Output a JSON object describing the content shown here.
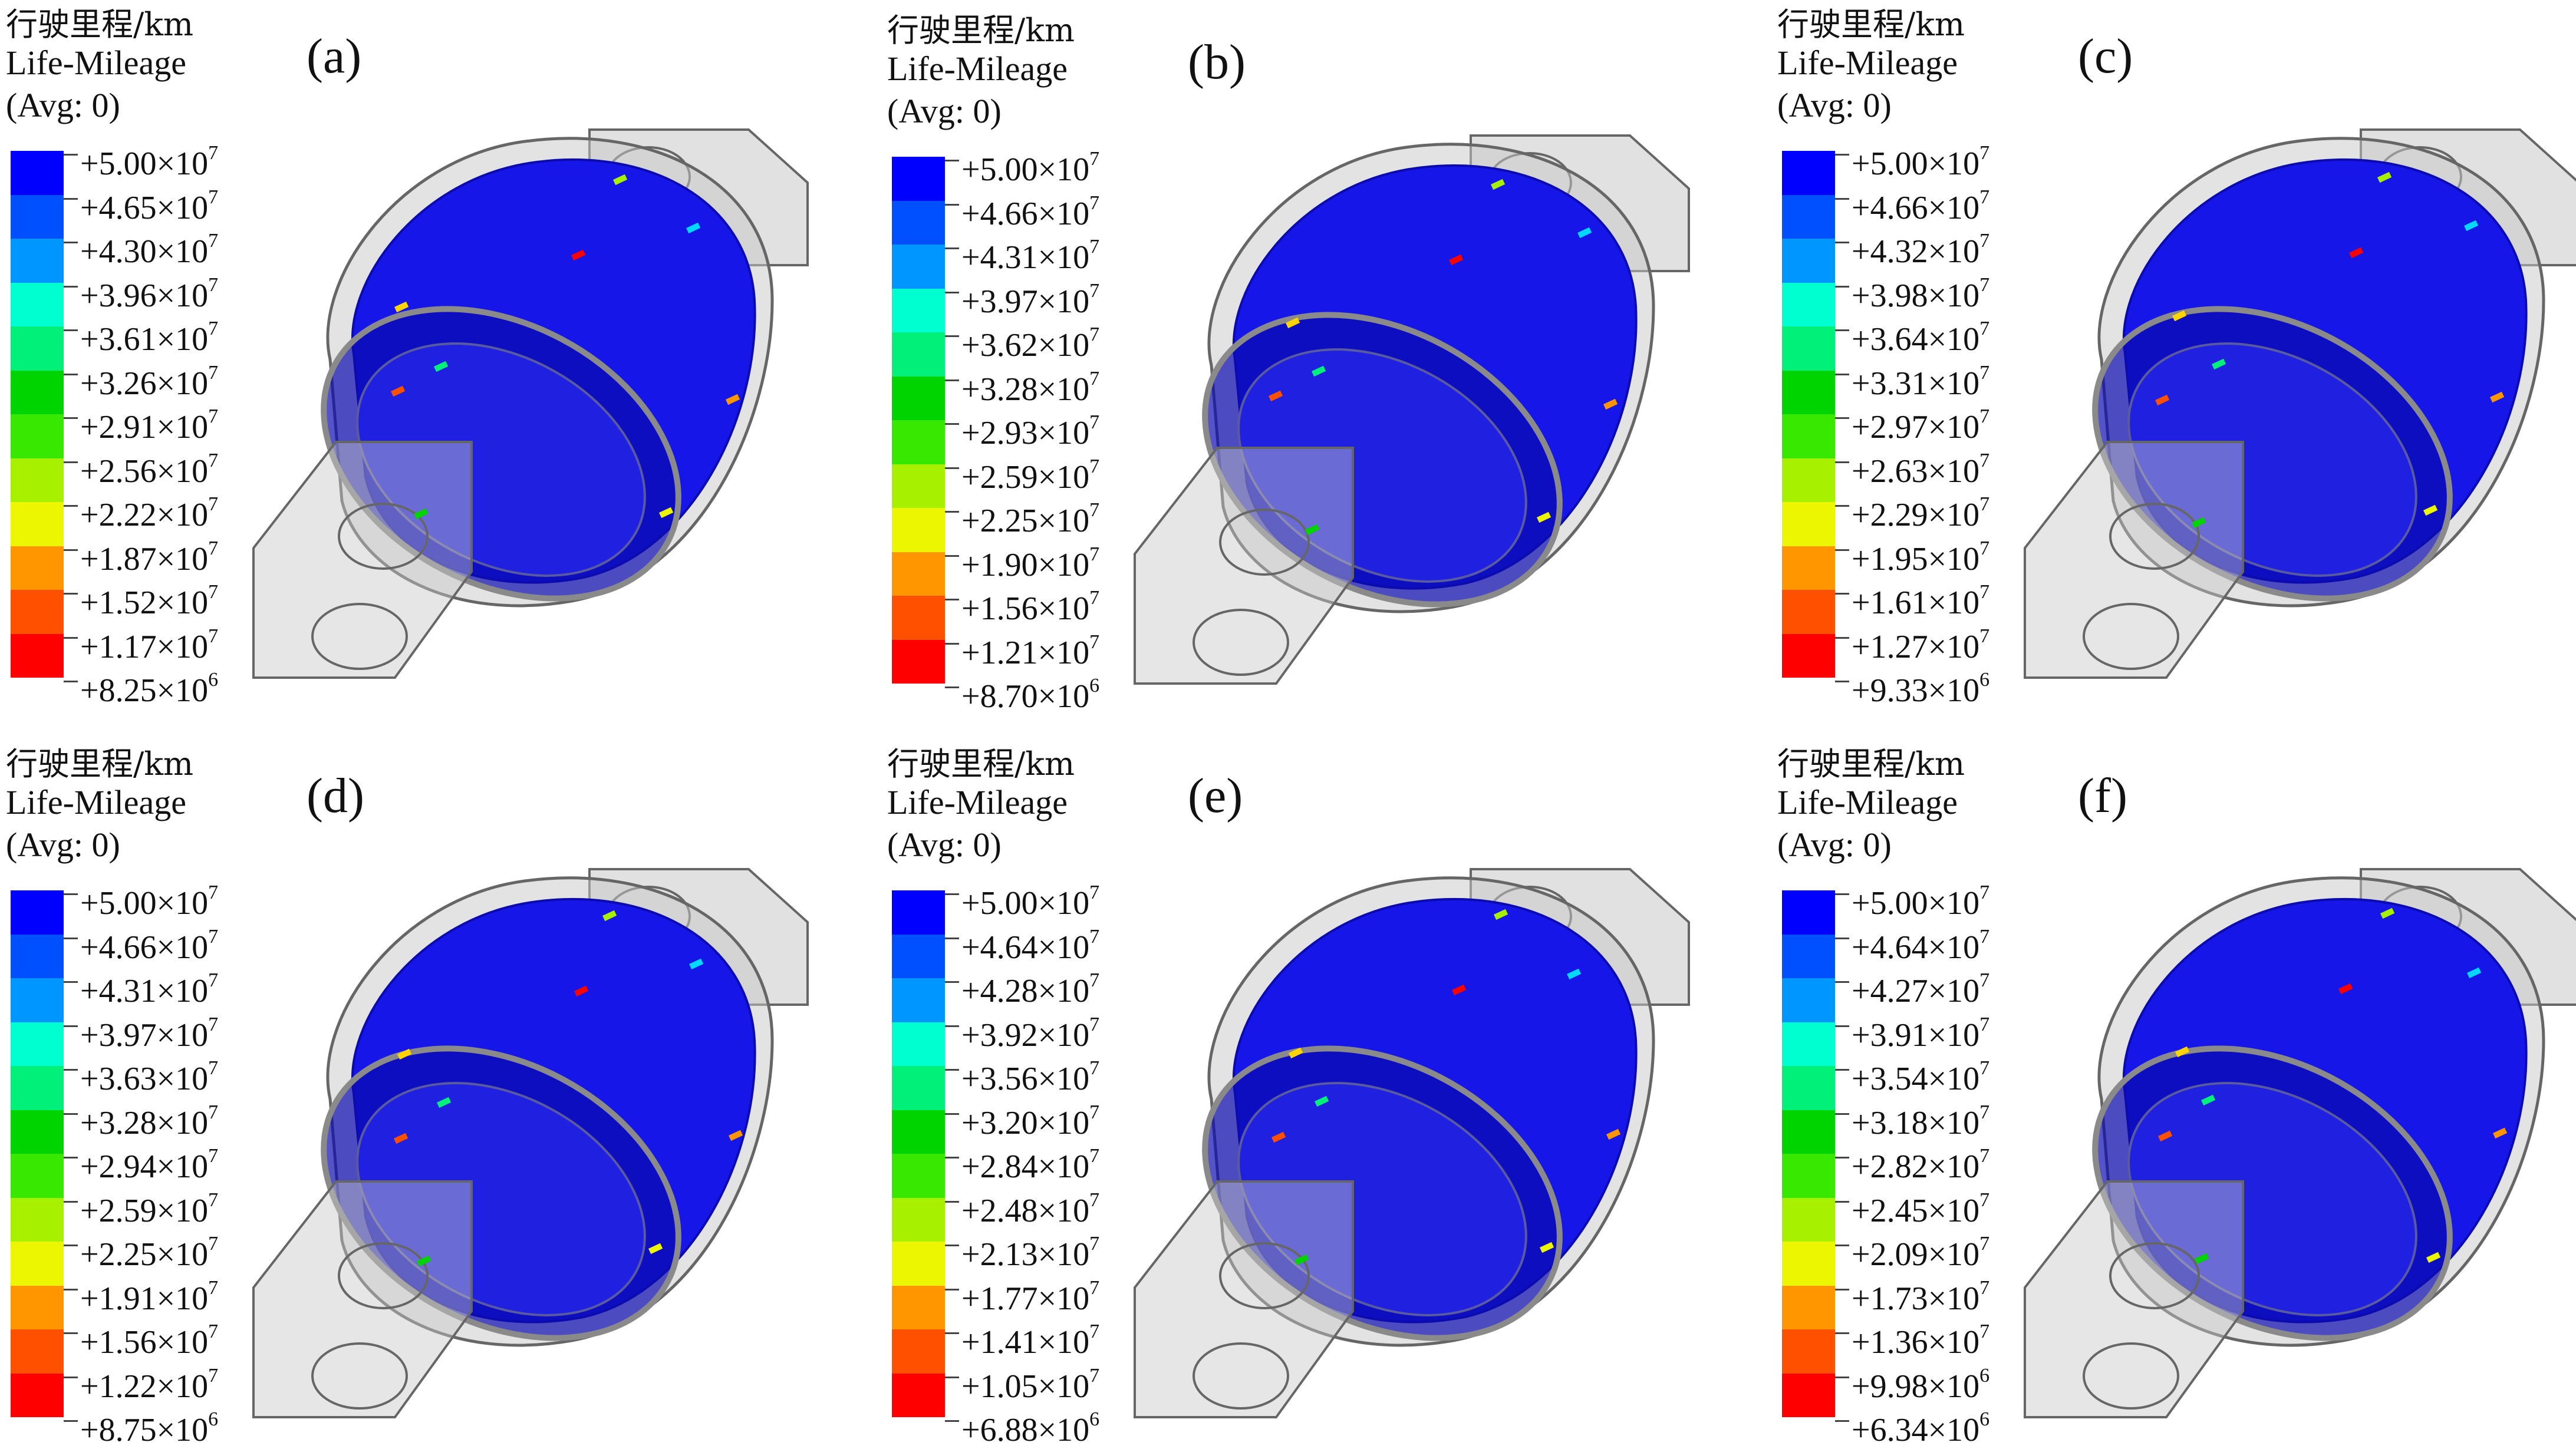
{
  "panels": [
    {
      "tag": "(a)",
      "title_cn": "行驶里程/km",
      "title_en": "Life-Mileage",
      "avg": "(Avg: 0)",
      "ticks": [
        {
          "m": "+5.00×10",
          "e": "7"
        },
        {
          "m": "+4.65×10",
          "e": "7"
        },
        {
          "m": "+4.30×10",
          "e": "7"
        },
        {
          "m": "+3.96×10",
          "e": "7"
        },
        {
          "m": "+3.61×10",
          "e": "7"
        },
        {
          "m": "+3.26×10",
          "e": "7"
        },
        {
          "m": "+2.91×10",
          "e": "7"
        },
        {
          "m": "+2.56×10",
          "e": "7"
        },
        {
          "m": "+2.22×10",
          "e": "7"
        },
        {
          "m": "+1.87×10",
          "e": "7"
        },
        {
          "m": "+1.52×10",
          "e": "7"
        },
        {
          "m": "+1.17×10",
          "e": "7"
        },
        {
          "m": "+8.25×10",
          "e": "6"
        }
      ]
    },
    {
      "tag": "(b)",
      "title_cn": "行驶里程/km",
      "title_en": "Life-Mileage",
      "avg": "(Avg: 0)",
      "ticks": [
        {
          "m": "+5.00×10",
          "e": "7"
        },
        {
          "m": "+4.66×10",
          "e": "7"
        },
        {
          "m": "+4.31×10",
          "e": "7"
        },
        {
          "m": "+3.97×10",
          "e": "7"
        },
        {
          "m": "+3.62×10",
          "e": "7"
        },
        {
          "m": "+3.28×10",
          "e": "7"
        },
        {
          "m": "+2.93×10",
          "e": "7"
        },
        {
          "m": "+2.59×10",
          "e": "7"
        },
        {
          "m": "+2.25×10",
          "e": "7"
        },
        {
          "m": "+1.90×10",
          "e": "7"
        },
        {
          "m": "+1.56×10",
          "e": "7"
        },
        {
          "m": "+1.21×10",
          "e": "7"
        },
        {
          "m": "+8.70×10",
          "e": "6"
        }
      ]
    },
    {
      "tag": "(c)",
      "title_cn": "行驶里程/km",
      "title_en": "Life-Mileage",
      "avg": "(Avg: 0)",
      "ticks": [
        {
          "m": "+5.00×10",
          "e": "7"
        },
        {
          "m": "+4.66×10",
          "e": "7"
        },
        {
          "m": "+4.32×10",
          "e": "7"
        },
        {
          "m": "+3.98×10",
          "e": "7"
        },
        {
          "m": "+3.64×10",
          "e": "7"
        },
        {
          "m": "+3.31×10",
          "e": "7"
        },
        {
          "m": "+2.97×10",
          "e": "7"
        },
        {
          "m": "+2.63×10",
          "e": "7"
        },
        {
          "m": "+2.29×10",
          "e": "7"
        },
        {
          "m": "+1.95×10",
          "e": "7"
        },
        {
          "m": "+1.61×10",
          "e": "7"
        },
        {
          "m": "+1.27×10",
          "e": "7"
        },
        {
          "m": "+9.33×10",
          "e": "6"
        }
      ]
    },
    {
      "tag": "(d)",
      "title_cn": "行驶里程/km",
      "title_en": "Life-Mileage",
      "avg": "(Avg: 0)",
      "ticks": [
        {
          "m": "+5.00×10",
          "e": "7"
        },
        {
          "m": "+4.66×10",
          "e": "7"
        },
        {
          "m": "+4.31×10",
          "e": "7"
        },
        {
          "m": "+3.97×10",
          "e": "7"
        },
        {
          "m": "+3.63×10",
          "e": "7"
        },
        {
          "m": "+3.28×10",
          "e": "7"
        },
        {
          "m": "+2.94×10",
          "e": "7"
        },
        {
          "m": "+2.59×10",
          "e": "7"
        },
        {
          "m": "+2.25×10",
          "e": "7"
        },
        {
          "m": "+1.91×10",
          "e": "7"
        },
        {
          "m": "+1.56×10",
          "e": "7"
        },
        {
          "m": "+1.22×10",
          "e": "7"
        },
        {
          "m": "+8.75×10",
          "e": "6"
        }
      ]
    },
    {
      "tag": "(e)",
      "title_cn": "行驶里程/km",
      "title_en": "Life-Mileage",
      "avg": "(Avg: 0)",
      "ticks": [
        {
          "m": "+5.00×10",
          "e": "7"
        },
        {
          "m": "+4.64×10",
          "e": "7"
        },
        {
          "m": "+4.28×10",
          "e": "7"
        },
        {
          "m": "+3.92×10",
          "e": "7"
        },
        {
          "m": "+3.56×10",
          "e": "7"
        },
        {
          "m": "+3.20×10",
          "e": "7"
        },
        {
          "m": "+2.84×10",
          "e": "7"
        },
        {
          "m": "+2.48×10",
          "e": "7"
        },
        {
          "m": "+2.13×10",
          "e": "7"
        },
        {
          "m": "+1.77×10",
          "e": "7"
        },
        {
          "m": "+1.41×10",
          "e": "7"
        },
        {
          "m": "+1.05×10",
          "e": "7"
        },
        {
          "m": "+6.88×10",
          "e": "6"
        }
      ]
    },
    {
      "tag": "(f)",
      "title_cn": "行驶里程/km",
      "title_en": "Life-Mileage",
      "avg": "(Avg: 0)",
      "ticks": [
        {
          "m": "+5.00×10",
          "e": "7"
        },
        {
          "m": "+4.64×10",
          "e": "7"
        },
        {
          "m": "+4.27×10",
          "e": "7"
        },
        {
          "m": "+3.91×10",
          "e": "7"
        },
        {
          "m": "+3.54×10",
          "e": "7"
        },
        {
          "m": "+3.18×10",
          "e": "7"
        },
        {
          "m": "+2.82×10",
          "e": "7"
        },
        {
          "m": "+2.45×10",
          "e": "7"
        },
        {
          "m": "+2.09×10",
          "e": "7"
        },
        {
          "m": "+1.73×10",
          "e": "7"
        },
        {
          "m": "+1.36×10",
          "e": "7"
        },
        {
          "m": "+9.98×10",
          "e": "6"
        },
        {
          "m": "+6.34×10",
          "e": "6"
        }
      ]
    }
  ],
  "colormap": [
    "#0000ff",
    "#0050ff",
    "#0096ff",
    "#00d8ff",
    "#00ffd0",
    "#00f07a",
    "#00d400",
    "#38e800",
    "#a6f000",
    "#ecf600",
    "#ffd400",
    "#ff9600",
    "#ff5000",
    "#ff0000"
  ],
  "model_colors": {
    "rubber": "#1616e8",
    "rubber_dark": "#0b0bb0",
    "housing": "#c8c8c8",
    "housing_edge": "#666666"
  }
}
